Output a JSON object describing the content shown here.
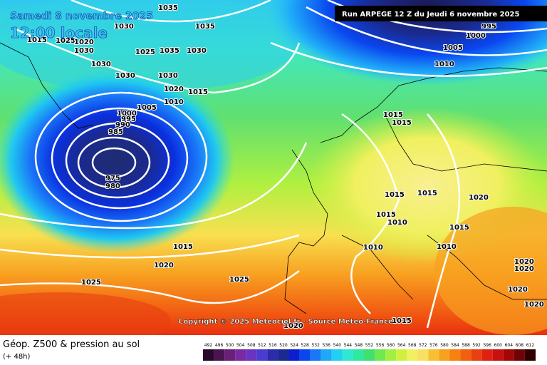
{
  "header": {
    "date": "Samedi 8 novembre 2025",
    "time": "12:00 locale",
    "run": "Run ARPEGE 12 Z du Jeudi 6 novembre 2025"
  },
  "copyright": "Copyright © 2025 Meteociel.fr - Source Meteo-France",
  "footer": {
    "title": "Géop. Z500 & pression au sol",
    "lead": "(+ 48h)"
  },
  "isobar_labels": [
    1035,
    1030,
    1015,
    1025,
    1020,
    1030,
    1030,
    1025,
    1035,
    1030,
    1035,
    1030,
    1030,
    1020,
    1015,
    1010,
    1005,
    1000,
    995,
    990,
    985,
    975,
    980,
    995,
    1000,
    1005,
    1010,
    1015,
    1015,
    1015,
    1015,
    1020,
    1015,
    1010,
    1015,
    1010,
    1010,
    1015,
    1020,
    1025,
    1025,
    1020,
    1020,
    1020,
    1020,
    1015,
    1020
  ],
  "legend": {
    "labels": [
      492,
      496,
      500,
      504,
      508,
      512,
      516,
      520,
      524,
      528,
      532,
      536,
      540,
      544,
      548,
      552,
      556,
      560,
      564,
      568,
      572,
      576,
      580,
      584,
      588,
      592,
      596,
      600,
      604,
      608,
      612
    ],
    "colors": [
      "#2a0a2a",
      "#4a1450",
      "#6a2078",
      "#7a2aa0",
      "#6a34c0",
      "#4a3cd0",
      "#2c2ca8",
      "#1a2a90",
      "#0a1ed0",
      "#0a46f0",
      "#1a78f8",
      "#20a8f8",
      "#20d0f0",
      "#30e8d0",
      "#30e8a0",
      "#40e070",
      "#70e850",
      "#a0f040",
      "#d0f040",
      "#f0f060",
      "#f8e060",
      "#f8c030",
      "#f8a020",
      "#f88010",
      "#f06010",
      "#e84010",
      "#e02010",
      "#c81010",
      "#a00808",
      "#700404",
      "#300000"
    ]
  }
}
